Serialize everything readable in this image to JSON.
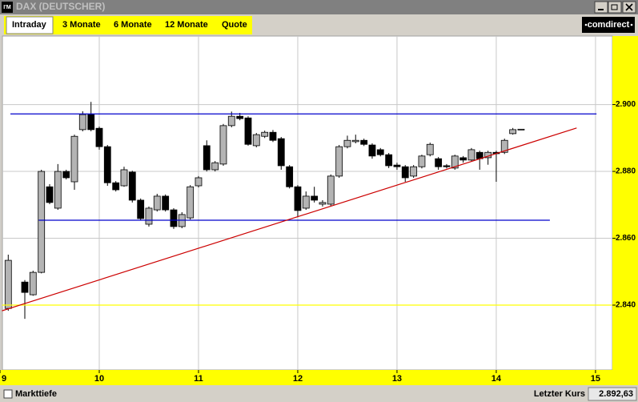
{
  "window": {
    "title": "DAX (DEUTSCHER)",
    "icon": "I'M"
  },
  "tabs": [
    "Intraday",
    "3 Monate",
    "6 Monate",
    "12 Monate",
    "Quote"
  ],
  "logo": "comdirect",
  "status_bar": {
    "left": "Markttiefe",
    "label": "Letzter Kurs",
    "value": "2.892,63"
  },
  "chart_data": {
    "type": "candlestick",
    "x": [
      9.083,
      9.25,
      9.333,
      9.417,
      9.5,
      9.583,
      9.667,
      9.75,
      9.833,
      9.917,
      10.0,
      10.083,
      10.167,
      10.25,
      10.333,
      10.417,
      10.5,
      10.583,
      10.667,
      10.75,
      10.833,
      10.917,
      11.0,
      11.083,
      11.167,
      11.25,
      11.333,
      11.417,
      11.5,
      11.583,
      11.667,
      11.75,
      11.833,
      11.917,
      12.0,
      12.083,
      12.167,
      12.25,
      12.333,
      12.417,
      12.5,
      12.583,
      12.667,
      12.75,
      12.833,
      12.917,
      13.0,
      13.083,
      13.167,
      13.25,
      13.333,
      13.417,
      13.5,
      13.583,
      13.667,
      13.75,
      13.833,
      13.917,
      14.0,
      14.083,
      14.167,
      14.25
    ],
    "open": [
      2839.0,
      2846.9,
      2843.1,
      2849.8,
      2875.4,
      2869.0,
      2880.0,
      2876.9,
      2892.5,
      2897.0,
      2892.9,
      2887.4,
      2876.6,
      2875.7,
      2879.8,
      2871.4,
      2864.2,
      2868.5,
      2872.6,
      2868.5,
      2863.5,
      2866.1,
      2875.7,
      2887.7,
      2880.5,
      2882.2,
      2893.7,
      2896.5,
      2896.0,
      2887.7,
      2890.5,
      2891.7,
      2889.8,
      2881.4,
      2875.4,
      2869.0,
      2872.6,
      2870.2,
      2870.2,
      2878.6,
      2887.4,
      2888.9,
      2889.3,
      2887.9,
      2886.5,
      2885.0,
      2881.9,
      2881.4,
      2878.6,
      2881.4,
      2885.0,
      2883.8,
      2881.7,
      2881.0,
      2884.1,
      2883.4,
      2885.7,
      2884.1,
      2885.7,
      2885.7,
      2891.3,
      2892.5
    ],
    "high": [
      2855.1,
      2847.5,
      2850.3,
      2880.5,
      2876.2,
      2882.2,
      2880.5,
      2891.0,
      2898.0,
      2900.8,
      2893.4,
      2887.9,
      2877.1,
      2881.4,
      2880.2,
      2871.9,
      2869.5,
      2873.3,
      2873.1,
      2869.0,
      2867.8,
      2875.9,
      2878.6,
      2889.3,
      2883.1,
      2894.2,
      2897.9,
      2897.5,
      2896.5,
      2891.5,
      2892.2,
      2892.4,
      2890.3,
      2881.9,
      2875.9,
      2874.0,
      2875.4,
      2871.4,
      2879.1,
      2887.9,
      2890.7,
      2891.0,
      2889.8,
      2888.4,
      2887.0,
      2885.5,
      2882.6,
      2881.9,
      2881.9,
      2885.0,
      2888.6,
      2884.3,
      2882.2,
      2885.0,
      2884.6,
      2887.0,
      2886.2,
      2886.2,
      2886.2,
      2889.8,
      2893.0,
      2892.7
    ],
    "low": [
      2838.3,
      2835.9,
      2842.8,
      2849.5,
      2870.2,
      2868.5,
      2877.6,
      2874.5,
      2892.0,
      2892.0,
      2886.5,
      2875.7,
      2874.0,
      2875.4,
      2870.7,
      2865.4,
      2863.5,
      2868.0,
      2868.0,
      2862.8,
      2863.0,
      2865.6,
      2875.2,
      2880.0,
      2880.0,
      2881.7,
      2893.2,
      2895.3,
      2887.7,
      2887.2,
      2890.0,
      2888.8,
      2880.5,
      2874.9,
      2866.3,
      2868.5,
      2870.7,
      2869.5,
      2869.7,
      2878.1,
      2886.9,
      2888.4,
      2887.6,
      2883.8,
      2884.5,
      2881.0,
      2880.5,
      2876.9,
      2878.1,
      2880.9,
      2884.5,
      2880.5,
      2880.9,
      2880.5,
      2882.6,
      2882.9,
      2880.5,
      2882.0,
      2876.9,
      2885.2,
      2891.0,
      2892.5
    ],
    "close": [
      2853.4,
      2843.8,
      2849.8,
      2880.0,
      2870.7,
      2880.0,
      2878.1,
      2890.5,
      2897.0,
      2892.5,
      2887.4,
      2876.6,
      2874.5,
      2880.5,
      2871.4,
      2865.9,
      2869.0,
      2872.6,
      2868.5,
      2863.5,
      2867.1,
      2875.4,
      2878.1,
      2880.5,
      2882.6,
      2893.7,
      2896.5,
      2895.8,
      2888.1,
      2891.0,
      2891.7,
      2889.3,
      2881.7,
      2875.4,
      2868.3,
      2872.6,
      2871.4,
      2870.7,
      2878.6,
      2887.4,
      2889.3,
      2889.3,
      2888.1,
      2884.6,
      2885.0,
      2881.7,
      2881.4,
      2878.1,
      2881.4,
      2884.6,
      2888.1,
      2881.4,
      2881.4,
      2884.6,
      2883.4,
      2886.5,
      2883.8,
      2885.7,
      2885.3,
      2889.3,
      2892.5,
      2892.63
    ],
    "up_color": "#b4b4b4",
    "down_color": "#000000",
    "xlim": [
      9,
      15.17
    ],
    "ylim": [
      2820.6,
      2920.5
    ],
    "xticks": [
      9,
      10,
      11,
      12,
      13,
      14,
      15
    ],
    "yticks": [
      {
        "value": 2840,
        "label": "2.840"
      },
      {
        "value": 2860,
        "label": "2.860"
      },
      {
        "value": 2880,
        "label": "2.880"
      },
      {
        "value": 2900,
        "label": "2.900"
      }
    ],
    "grid": true,
    "lines": [
      {
        "color": "#0000cc",
        "x": [
          9.105,
          15.01
        ],
        "y": [
          2897.2,
          2897.2
        ]
      },
      {
        "color": "#0000cc",
        "x": [
          9.39,
          14.54
        ],
        "y": [
          2865.4,
          2865.4
        ]
      },
      {
        "color": "#ffff00",
        "x": [
          9.02,
          15.17
        ],
        "y": [
          2840,
          2840
        ]
      },
      {
        "color": "#cc0000",
        "x": [
          9.02,
          14.81
        ],
        "y": [
          2838.3,
          2893.0
        ]
      }
    ]
  }
}
